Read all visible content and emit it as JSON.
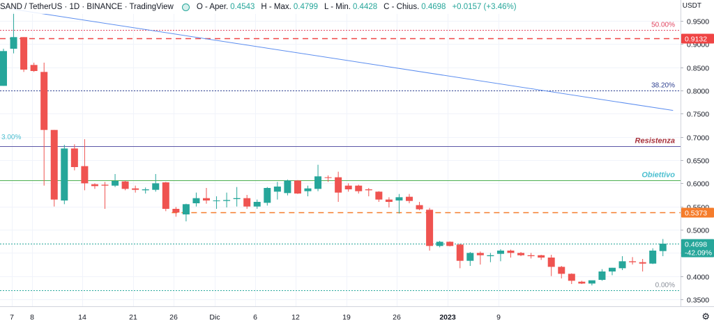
{
  "header": {
    "symbol": "SAND / TetherUS · 1D · BINANCE · TradingView",
    "open_label": "O - Aper.",
    "open_value": "0.4543",
    "high_label": "H - Max.",
    "high_value": "0.4799",
    "low_label": "L - Min.",
    "low_value": "0.4428",
    "close_label": "C - Chius.",
    "close_value": "0.4698",
    "change": "+0.0157 (+3.46%)"
  },
  "price_axis": {
    "unit": "USDT",
    "ticks": [
      "0.9500",
      "0.9000",
      "0.8500",
      "0.8000",
      "0.7500",
      "0.7000",
      "0.6500",
      "0.6000",
      "0.5500",
      "0.5000",
      "0.4500",
      "0.4000",
      "0.3500"
    ],
    "ticks_values": [
      0.95,
      0.9,
      0.85,
      0.8,
      0.75,
      0.7,
      0.65,
      0.6,
      0.55,
      0.5,
      0.45,
      0.4,
      0.35
    ]
  },
  "time_axis": {
    "labels": [
      "7",
      "8",
      "14",
      "21",
      "26",
      "Dic",
      "6",
      "12",
      "19",
      "26",
      "2023",
      "9"
    ],
    "positions_index": [
      1,
      3,
      8,
      13,
      17,
      21,
      25,
      29,
      34,
      39,
      44,
      49
    ],
    "bold": [
      "2023"
    ]
  },
  "colors": {
    "up": "#26a69a",
    "down": "#ef5350",
    "trendline": "#5b8def",
    "fib50": "#e0445f",
    "fib382": "#2d3f8f",
    "resistance_line": "#5c57a6",
    "objective_line": "#4caf50",
    "dashed_orange": "#f57c2b",
    "fib0": "#26a69a",
    "resistance_text": "#a8323b",
    "objective_text": "#4cbfd0"
  },
  "chart_data": {
    "type": "candlestick",
    "symbol": "SAND / TetherUS",
    "interval": "1D",
    "exchange": "BINANCE",
    "ylim": [
      0.33,
      0.98
    ],
    "candles": [
      {
        "o": 0.81,
        "h": 0.89,
        "l": 0.81,
        "c": 0.885
      },
      {
        "o": 0.89,
        "h": 0.968,
        "l": 0.88,
        "c": 0.915
      },
      {
        "o": 0.915,
        "h": 0.915,
        "l": 0.84,
        "c": 0.845
      },
      {
        "o": 0.855,
        "h": 0.86,
        "l": 0.84,
        "c": 0.842
      },
      {
        "o": 0.84,
        "h": 0.86,
        "l": 0.595,
        "c": 0.715
      },
      {
        "o": 0.715,
        "h": 0.715,
        "l": 0.55,
        "c": 0.565
      },
      {
        "o": 0.563,
        "h": 0.683,
        "l": 0.555,
        "c": 0.675
      },
      {
        "o": 0.675,
        "h": 0.684,
        "l": 0.628,
        "c": 0.635
      },
      {
        "o": 0.637,
        "h": 0.695,
        "l": 0.585,
        "c": 0.6
      },
      {
        "o": 0.598,
        "h": 0.6,
        "l": 0.588,
        "c": 0.594
      },
      {
        "o": 0.597,
        "h": 0.603,
        "l": 0.545,
        "c": 0.595
      },
      {
        "o": 0.595,
        "h": 0.62,
        "l": 0.592,
        "c": 0.605
      },
      {
        "o": 0.604,
        "h": 0.606,
        "l": 0.585,
        "c": 0.588
      },
      {
        "o": 0.589,
        "h": 0.595,
        "l": 0.58,
        "c": 0.586
      },
      {
        "o": 0.585,
        "h": 0.591,
        "l": 0.578,
        "c": 0.587
      },
      {
        "o": 0.586,
        "h": 0.62,
        "l": 0.582,
        "c": 0.6
      },
      {
        "o": 0.602,
        "h": 0.603,
        "l": 0.54,
        "c": 0.545
      },
      {
        "o": 0.545,
        "h": 0.549,
        "l": 0.528,
        "c": 0.537
      },
      {
        "o": 0.533,
        "h": 0.556,
        "l": 0.518,
        "c": 0.555
      },
      {
        "o": 0.557,
        "h": 0.58,
        "l": 0.55,
        "c": 0.568
      },
      {
        "o": 0.568,
        "h": 0.59,
        "l": 0.556,
        "c": 0.563
      },
      {
        "o": 0.563,
        "h": 0.572,
        "l": 0.545,
        "c": 0.563
      },
      {
        "o": 0.562,
        "h": 0.58,
        "l": 0.548,
        "c": 0.564
      },
      {
        "o": 0.566,
        "h": 0.592,
        "l": 0.55,
        "c": 0.568
      },
      {
        "o": 0.568,
        "h": 0.575,
        "l": 0.545,
        "c": 0.55
      },
      {
        "o": 0.55,
        "h": 0.565,
        "l": 0.545,
        "c": 0.56
      },
      {
        "o": 0.558,
        "h": 0.592,
        "l": 0.552,
        "c": 0.59
      },
      {
        "o": 0.582,
        "h": 0.603,
        "l": 0.565,
        "c": 0.593
      },
      {
        "o": 0.579,
        "h": 0.608,
        "l": 0.574,
        "c": 0.606
      },
      {
        "o": 0.606,
        "h": 0.607,
        "l": 0.577,
        "c": 0.578
      },
      {
        "o": 0.583,
        "h": 0.595,
        "l": 0.572,
        "c": 0.589
      },
      {
        "o": 0.588,
        "h": 0.64,
        "l": 0.583,
        "c": 0.615
      },
      {
        "o": 0.613,
        "h": 0.617,
        "l": 0.603,
        "c": 0.612
      },
      {
        "o": 0.613,
        "h": 0.625,
        "l": 0.56,
        "c": 0.58
      },
      {
        "o": 0.595,
        "h": 0.6,
        "l": 0.582,
        "c": 0.587
      },
      {
        "o": 0.595,
        "h": 0.597,
        "l": 0.578,
        "c": 0.583
      },
      {
        "o": 0.587,
        "h": 0.59,
        "l": 0.572,
        "c": 0.585
      },
      {
        "o": 0.582,
        "h": 0.583,
        "l": 0.56,
        "c": 0.565
      },
      {
        "o": 0.565,
        "h": 0.57,
        "l": 0.548,
        "c": 0.56
      },
      {
        "o": 0.563,
        "h": 0.577,
        "l": 0.535,
        "c": 0.57
      },
      {
        "o": 0.571,
        "h": 0.577,
        "l": 0.557,
        "c": 0.562
      },
      {
        "o": 0.553,
        "h": 0.56,
        "l": 0.542,
        "c": 0.544
      },
      {
        "o": 0.543,
        "h": 0.547,
        "l": 0.455,
        "c": 0.465
      },
      {
        "o": 0.465,
        "h": 0.476,
        "l": 0.462,
        "c": 0.474
      },
      {
        "o": 0.474,
        "h": 0.475,
        "l": 0.464,
        "c": 0.465
      },
      {
        "o": 0.468,
        "h": 0.47,
        "l": 0.417,
        "c": 0.433
      },
      {
        "o": 0.433,
        "h": 0.452,
        "l": 0.422,
        "c": 0.45
      },
      {
        "o": 0.45,
        "h": 0.453,
        "l": 0.425,
        "c": 0.445
      },
      {
        "o": 0.443,
        "h": 0.45,
        "l": 0.43,
        "c": 0.445
      },
      {
        "o": 0.448,
        "h": 0.458,
        "l": 0.432,
        "c": 0.455
      },
      {
        "o": 0.455,
        "h": 0.457,
        "l": 0.44,
        "c": 0.45
      },
      {
        "o": 0.45,
        "h": 0.452,
        "l": 0.443,
        "c": 0.445
      },
      {
        "o": 0.445,
        "h": 0.45,
        "l": 0.438,
        "c": 0.443
      },
      {
        "o": 0.445,
        "h": 0.446,
        "l": 0.435,
        "c": 0.44
      },
      {
        "o": 0.44,
        "h": 0.446,
        "l": 0.4,
        "c": 0.42
      },
      {
        "o": 0.42,
        "h": 0.422,
        "l": 0.395,
        "c": 0.405
      },
      {
        "o": 0.405,
        "h": 0.406,
        "l": 0.383,
        "c": 0.39
      },
      {
        "o": 0.388,
        "h": 0.39,
        "l": 0.383,
        "c": 0.384
      },
      {
        "o": 0.384,
        "h": 0.39,
        "l": 0.38,
        "c": 0.391
      },
      {
        "o": 0.392,
        "h": 0.415,
        "l": 0.39,
        "c": 0.41
      },
      {
        "o": 0.41,
        "h": 0.418,
        "l": 0.402,
        "c": 0.418
      },
      {
        "o": 0.417,
        "h": 0.443,
        "l": 0.413,
        "c": 0.432
      },
      {
        "o": 0.432,
        "h": 0.441,
        "l": 0.425,
        "c": 0.43
      },
      {
        "o": 0.43,
        "h": 0.437,
        "l": 0.41,
        "c": 0.427
      },
      {
        "o": 0.427,
        "h": 0.46,
        "l": 0.426,
        "c": 0.455
      },
      {
        "o": 0.454,
        "h": 0.48,
        "l": 0.443,
        "c": 0.47
      }
    ],
    "horizontal_lines": [
      {
        "price": 0.93,
        "style": "dotted",
        "color": "#e0445f",
        "label": "50.00%",
        "label_color": "#e0445f"
      },
      {
        "price": 0.9132,
        "style": "dashed",
        "color": "#ef4444",
        "badge": "0.9132",
        "badge_color": "#ef4444"
      },
      {
        "price": 0.8,
        "style": "dotted",
        "color": "#2d3f8f",
        "label": "38.20%",
        "label_color": "#2d3f8f"
      },
      {
        "price": 0.68,
        "style": "solid",
        "color": "#5c57a6",
        "label": "Resistenza",
        "label_color": "#a8323b",
        "italic_bold": true
      },
      {
        "price": 0.607,
        "style": "solid",
        "color": "#4caf50",
        "label": "Obiettivo",
        "label_color": "#4cbfd0",
        "italic_bold": true
      },
      {
        "price": 0.5373,
        "style": "dashed",
        "color": "#f57c2b",
        "badge": "0.5373",
        "badge_color": "#f57c2b",
        "start_index": 17
      },
      {
        "price": 0.4698,
        "style": "dotted",
        "color": "#26a69a",
        "badge": "0.4698",
        "badge2": "-42.09%",
        "badge_color": "#26a69a"
      },
      {
        "price": 0.37,
        "style": "dotted",
        "color": "#26a69a",
        "label": "0.00%",
        "label_color": "#8a8f99"
      }
    ],
    "left_label": {
      "text": "3.00%",
      "price": 0.695,
      "color": "#4cbfd0"
    },
    "trendline": {
      "x1_index": 1,
      "y1": 0.975,
      "x2_index": 66,
      "y2": 0.757,
      "color": "#5b8def"
    }
  }
}
